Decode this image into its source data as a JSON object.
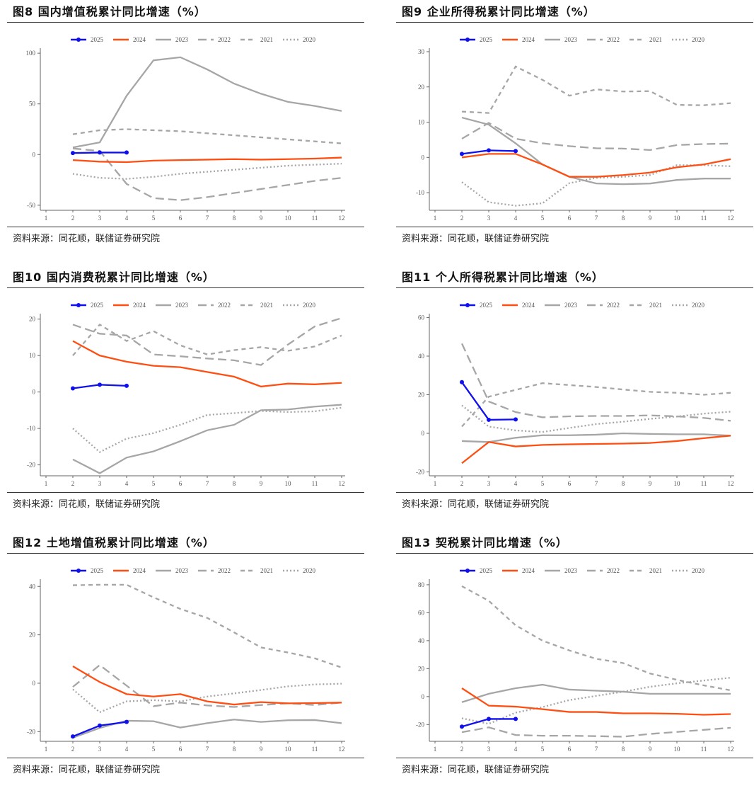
{
  "legend": [
    "2025",
    "2024",
    "2023",
    "2022",
    "2021",
    "2020"
  ],
  "series_style": {
    "2025": "#1010ee",
    "2024": "#ff4e12",
    "2023": "#a6a6a6",
    "2022": "#a6a6a6",
    "2021": "#a6a6a6",
    "2020": "#a6a6a6"
  },
  "source": "资料来源：同花顺，联储证券研究院",
  "chart_data": [
    {
      "type": "line",
      "title": "图8  国内增值税累计同比增速（%）",
      "ylim": [
        -55,
        105
      ],
      "yticks": [
        -50,
        0,
        50,
        100
      ],
      "x": [
        1,
        2,
        3,
        4,
        5,
        6,
        7,
        8,
        9,
        10,
        11,
        12
      ],
      "series": [
        {
          "name": "2025",
          "x": [
            2,
            3,
            4
          ],
          "values": [
            1.5,
            2,
            2
          ]
        },
        {
          "name": "2024",
          "x": [
            2,
            3,
            4,
            5,
            6,
            7,
            8,
            9,
            10,
            11,
            12
          ],
          "values": [
            -5.5,
            -7,
            -7.5,
            -6,
            -5.5,
            -5,
            -4.5,
            -5,
            -4.5,
            -4,
            -3
          ]
        },
        {
          "name": "2023",
          "x": [
            2,
            3,
            4,
            5,
            6,
            7,
            8,
            9,
            10,
            11,
            12
          ],
          "values": [
            7,
            12,
            58,
            93,
            96,
            84,
            70,
            60,
            52,
            48,
            43
          ]
        },
        {
          "name": "2022",
          "x": [
            2,
            3,
            4,
            5,
            6,
            7,
            8,
            9,
            10,
            11,
            12
          ],
          "values": [
            6,
            3.5,
            -29,
            -43,
            -45,
            -42,
            -38,
            -34,
            -30,
            -26,
            -23
          ]
        },
        {
          "name": "2021",
          "x": [
            2,
            3,
            4,
            5,
            6,
            7,
            8,
            9,
            10,
            11,
            12
          ],
          "values": [
            20,
            24,
            25,
            24,
            23,
            21,
            19,
            17,
            15,
            13,
            11
          ]
        },
        {
          "name": "2020",
          "x": [
            2,
            3,
            4,
            5,
            6,
            7,
            8,
            9,
            10,
            11,
            12
          ],
          "values": [
            -19,
            -23,
            -24,
            -22,
            -19,
            -17,
            -15,
            -13,
            -11,
            -10,
            -9
          ]
        }
      ]
    },
    {
      "type": "line",
      "title": "图9  企业所得税累计同比增速（%）",
      "ylim": [
        -15,
        31
      ],
      "yticks": [
        -10,
        0,
        10,
        20,
        30
      ],
      "x": [
        1,
        2,
        3,
        4,
        5,
        6,
        7,
        8,
        9,
        10,
        11,
        12
      ],
      "series": [
        {
          "name": "2025",
          "x": [
            2,
            3,
            4
          ],
          "values": [
            1,
            2,
            1.8
          ]
        },
        {
          "name": "2024",
          "x": [
            2,
            3,
            4,
            5,
            6,
            7,
            8,
            9,
            10,
            11,
            12
          ],
          "values": [
            0,
            1,
            1,
            -2,
            -5.5,
            -5.5,
            -5,
            -4.3,
            -2.8,
            -2,
            -0.5
          ]
        },
        {
          "name": "2023",
          "x": [
            2,
            3,
            4,
            5,
            6,
            7,
            8,
            9,
            10,
            11,
            12
          ],
          "values": [
            11.3,
            9.3,
            4,
            -2,
            -5.5,
            -7.4,
            -7.6,
            -7.4,
            -6.4,
            -6,
            -6
          ]
        },
        {
          "name": "2022",
          "x": [
            2,
            3,
            4,
            5,
            6,
            7,
            8,
            9,
            10,
            11,
            12
          ],
          "values": [
            5.3,
            9.8,
            5.3,
            4,
            3.2,
            2.6,
            2.5,
            2.1,
            3.5,
            3.8,
            3.9
          ]
        },
        {
          "name": "2021",
          "x": [
            2,
            3,
            4,
            5,
            6,
            7,
            8,
            9,
            10,
            11,
            12
          ],
          "values": [
            13,
            12.6,
            25.8,
            22,
            17.5,
            19.3,
            18.7,
            18.8,
            14.9,
            14.8,
            15.4
          ]
        },
        {
          "name": "2020",
          "x": [
            2,
            3,
            4,
            5,
            6,
            7,
            8,
            9,
            10,
            11,
            12
          ],
          "values": [
            -7,
            -12.7,
            -13.7,
            -13,
            -7.3,
            -5.8,
            -5.5,
            -5,
            -2.2,
            -2.2,
            -2.5
          ]
        }
      ]
    },
    {
      "type": "line",
      "title": "图10 国内消费税累计同比增速（%）",
      "ylim": [
        -23,
        21.5
      ],
      "yticks": [
        -20,
        -10,
        0,
        10,
        20
      ],
      "x": [
        1,
        2,
        3,
        4,
        5,
        6,
        7,
        8,
        9,
        10,
        11,
        12
      ],
      "series": [
        {
          "name": "2025",
          "x": [
            2,
            3,
            4
          ],
          "values": [
            1,
            2,
            1.7
          ]
        },
        {
          "name": "2024",
          "x": [
            2,
            3,
            4,
            5,
            6,
            7,
            8,
            9,
            10,
            11,
            12
          ],
          "values": [
            14,
            10,
            8.3,
            7.2,
            6.8,
            5.5,
            4.2,
            1.5,
            2.3,
            2.1,
            2.5
          ]
        },
        {
          "name": "2023",
          "x": [
            2,
            3,
            4,
            5,
            6,
            7,
            8,
            9,
            10,
            11,
            12
          ],
          "values": [
            -18.5,
            -22.3,
            -18,
            -16.3,
            -13.5,
            -10.5,
            -9,
            -5,
            -4.8,
            -4,
            -3.5
          ]
        },
        {
          "name": "2022",
          "x": [
            2,
            3,
            4,
            5,
            6,
            7,
            8,
            9,
            10,
            11,
            12
          ],
          "values": [
            18.5,
            16,
            15.5,
            10.3,
            9.8,
            9.2,
            8.7,
            7.4,
            13,
            18,
            20.3
          ]
        },
        {
          "name": "2021",
          "x": [
            2,
            3,
            4,
            5,
            6,
            7,
            8,
            9,
            10,
            11,
            12
          ],
          "values": [
            10,
            18.5,
            14,
            16.7,
            12.8,
            10.3,
            11.5,
            12.3,
            11.3,
            12.5,
            15.5
          ]
        },
        {
          "name": "2020",
          "x": [
            2,
            3,
            4,
            5,
            6,
            7,
            8,
            9,
            10,
            11,
            12
          ],
          "values": [
            -10,
            -16.5,
            -12.8,
            -11.3,
            -9,
            -6.3,
            -5.8,
            -5.2,
            -5.5,
            -5.3,
            -4.3
          ]
        }
      ]
    },
    {
      "type": "line",
      "title": "图11 个人所得税累计同比增速（%）",
      "ylim": [
        -22,
        62
      ],
      "yticks": [
        -20,
        0,
        20,
        40,
        60
      ],
      "x": [
        1,
        2,
        3,
        4,
        5,
        6,
        7,
        8,
        9,
        10,
        11,
        12
      ],
      "series": [
        {
          "name": "2025",
          "x": [
            2,
            3,
            4
          ],
          "values": [
            26.5,
            7,
            7.2
          ]
        },
        {
          "name": "2024",
          "x": [
            2,
            3,
            4,
            5,
            6,
            7,
            8,
            9,
            10,
            11,
            12
          ],
          "values": [
            -15.5,
            -4.5,
            -6.8,
            -6,
            -5.7,
            -5.5,
            -5.3,
            -5,
            -4,
            -2.5,
            -1.2
          ]
        },
        {
          "name": "2023",
          "x": [
            2,
            3,
            4,
            5,
            6,
            7,
            8,
            9,
            10,
            11,
            12
          ],
          "values": [
            -4,
            -4.5,
            -2.3,
            -1,
            -1,
            -0.7,
            0,
            -0.3,
            -0.5,
            -0.5,
            -1.2
          ]
        },
        {
          "name": "2022",
          "x": [
            2,
            3,
            4,
            5,
            6,
            7,
            8,
            9,
            10,
            11,
            12
          ],
          "values": [
            46.5,
            16.5,
            11,
            8.3,
            8.8,
            9,
            9,
            9.3,
            8.8,
            8,
            6.5
          ]
        },
        {
          "name": "2021",
          "x": [
            2,
            3,
            4,
            5,
            6,
            7,
            8,
            9,
            10,
            11,
            12
          ],
          "values": [
            3.5,
            19,
            22.5,
            26,
            25,
            24,
            22.7,
            21.5,
            21,
            20,
            21
          ]
        },
        {
          "name": "2020",
          "x": [
            2,
            3,
            4,
            5,
            6,
            7,
            8,
            9,
            10,
            11,
            12
          ],
          "values": [
            14.5,
            3.5,
            1.5,
            0.7,
            2.8,
            4.8,
            6,
            7.5,
            8.7,
            10.2,
            11.2
          ]
        }
      ]
    },
    {
      "type": "line",
      "title": "图12 土地增值税累计同比增速（%）",
      "ylim": [
        -24,
        43
      ],
      "yticks": [
        -20,
        0,
        20,
        40
      ],
      "x": [
        1,
        2,
        3,
        4,
        5,
        6,
        7,
        8,
        9,
        10,
        11,
        12
      ],
      "series": [
        {
          "name": "2025",
          "x": [
            2,
            3,
            4
          ],
          "values": [
            -22,
            -17.5,
            -16
          ]
        },
        {
          "name": "2024",
          "x": [
            2,
            3,
            4,
            5,
            6,
            7,
            8,
            9,
            10,
            11,
            12
          ],
          "values": [
            7,
            0.5,
            -4.5,
            -5.5,
            -4.5,
            -7.5,
            -8.8,
            -7.8,
            -8.3,
            -8.2,
            -8
          ]
        },
        {
          "name": "2023",
          "x": [
            2,
            3,
            4,
            5,
            6,
            7,
            8,
            9,
            10,
            11,
            12
          ],
          "values": [
            -22.5,
            -18.5,
            -15.5,
            -15.7,
            -18.3,
            -16.5,
            -15,
            -16,
            -15.3,
            -15.2,
            -16.5
          ]
        },
        {
          "name": "2022",
          "x": [
            2,
            3,
            4,
            5,
            6,
            7,
            8,
            9,
            10,
            11,
            12
          ],
          "values": [
            -1.5,
            7.5,
            -1,
            -9.5,
            -8,
            -9.2,
            -9.8,
            -9,
            -8.3,
            -9,
            -8
          ]
        },
        {
          "name": "2021",
          "x": [
            2,
            3,
            4,
            5,
            6,
            7,
            8,
            9,
            10,
            11,
            12
          ],
          "values": [
            40.5,
            40.7,
            40.7,
            35.5,
            30.7,
            27,
            21,
            14.8,
            12.7,
            10.3,
            6.5
          ]
        },
        {
          "name": "2020",
          "x": [
            2,
            3,
            4,
            5,
            6,
            7,
            8,
            9,
            10,
            11,
            12
          ],
          "values": [
            -2.5,
            -12,
            -7.5,
            -7,
            -7.5,
            -5.5,
            -4.2,
            -2.8,
            -1.3,
            -0.5,
            -0.2
          ]
        }
      ]
    },
    {
      "type": "line",
      "title": "图13 契税累计同比增速（%）",
      "ylim": [
        -32,
        84
      ],
      "yticks": [
        -20,
        0,
        20,
        40,
        60,
        80
      ],
      "x": [
        1,
        2,
        3,
        4,
        5,
        6,
        7,
        8,
        9,
        10,
        11,
        12
      ],
      "series": [
        {
          "name": "2025",
          "x": [
            2,
            3,
            4
          ],
          "values": [
            -21.5,
            -16,
            -16
          ]
        },
        {
          "name": "2024",
          "x": [
            2,
            3,
            4,
            5,
            6,
            7,
            8,
            9,
            10,
            11,
            12
          ],
          "values": [
            6,
            -6.5,
            -7.2,
            -9,
            -11,
            -11,
            -12,
            -12,
            -12.3,
            -13,
            -12.5
          ]
        },
        {
          "name": "2023",
          "x": [
            2,
            3,
            4,
            5,
            6,
            7,
            8,
            9,
            10,
            11,
            12
          ],
          "values": [
            -4,
            2,
            6,
            8.5,
            5,
            4.2,
            3.5,
            2,
            2,
            2,
            2
          ]
        },
        {
          "name": "2022",
          "x": [
            2,
            3,
            4,
            5,
            6,
            7,
            8,
            9,
            10,
            11,
            12
          ],
          "values": [
            -25.5,
            -22,
            -27.5,
            -28,
            -28,
            -28.3,
            -28.7,
            -26.7,
            -25.3,
            -23.8,
            -22.3
          ]
        },
        {
          "name": "2021",
          "x": [
            2,
            3,
            4,
            5,
            6,
            7,
            8,
            9,
            10,
            11,
            12
          ],
          "values": [
            79,
            68.5,
            51,
            40,
            33,
            27,
            24,
            16.5,
            12,
            8,
            4.5
          ]
        },
        {
          "name": "2020",
          "x": [
            2,
            3,
            4,
            5,
            6,
            7,
            8,
            9,
            10,
            11,
            12
          ],
          "values": [
            -15.5,
            -19.5,
            -11.5,
            -7.5,
            -2.5,
            0.5,
            3.5,
            7,
            9.5,
            11.5,
            13.5
          ]
        }
      ]
    }
  ]
}
